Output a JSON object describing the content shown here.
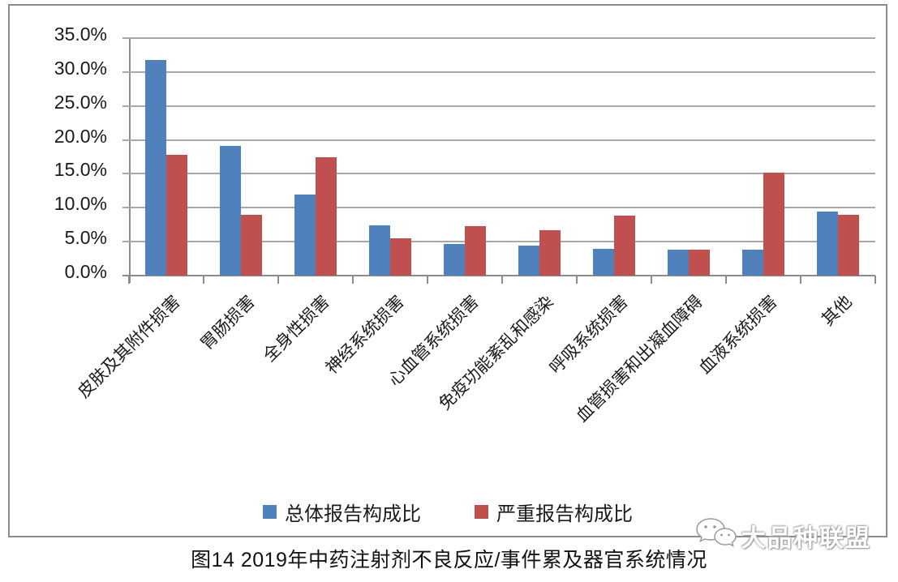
{
  "colors": {
    "series_overall": "#4f81bd",
    "series_serious": "#c0504d",
    "gridline": "#a8a8a8",
    "axis": "#8c8c8c",
    "frame_border": "#8c8c8c"
  },
  "chart_data": {
    "type": "bar",
    "title": "图14 2019年中药注射剂不良反应/事件累及器官系统情况",
    "categories": [
      "皮肤及其附件损害",
      "胃肠损害",
      "全身性损害",
      "神经系统损害",
      "心血管系统损害",
      "免疫功能紊乱和感染",
      "呼吸系统损害",
      "血管损害和出凝血障碍",
      "血液系统损害",
      "其他"
    ],
    "series": [
      {
        "name": "总体报告构成比",
        "color_key": "series_overall",
        "values": [
          31.8,
          19.1,
          12.0,
          7.4,
          4.7,
          4.4,
          3.9,
          3.8,
          3.8,
          9.4
        ]
      },
      {
        "name": "严重报告构成比",
        "color_key": "series_serious",
        "values": [
          17.8,
          9.0,
          17.5,
          5.5,
          7.3,
          6.7,
          8.8,
          3.8,
          15.2,
          9.0
        ]
      }
    ],
    "ylim": [
      0,
      35
    ],
    "ytick_step": 5,
    "ytick_labels": [
      "35.0%",
      "30.0%",
      "25.0%",
      "20.0%",
      "15.0%",
      "10.0%",
      "5.0%",
      "0.0%"
    ],
    "grid": "horizontal",
    "legend_position": "bottom",
    "xlabel": "",
    "ylabel": ""
  },
  "watermark": {
    "text": "大品种联盟",
    "icon": "wechat-icon"
  }
}
